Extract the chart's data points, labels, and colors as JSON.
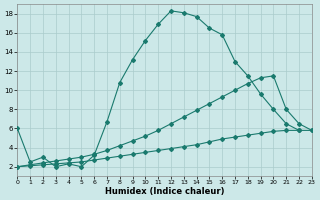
{
  "xlabel": "Humidex (Indice chaleur)",
  "background_color": "#cce8e8",
  "grid_color": "#aacccc",
  "line_color": "#1a7a6e",
  "xlim": [
    0,
    23
  ],
  "ylim": [
    1,
    19
  ],
  "xticks": [
    0,
    1,
    2,
    3,
    4,
    5,
    6,
    7,
    8,
    9,
    10,
    11,
    12,
    13,
    14,
    15,
    16,
    17,
    18,
    19,
    20,
    21,
    22,
    23
  ],
  "yticks": [
    2,
    4,
    6,
    8,
    10,
    12,
    14,
    16,
    18
  ],
  "curve1_x": [
    0,
    1,
    2,
    3,
    4,
    5,
    6,
    7,
    8,
    9,
    10,
    11,
    12,
    13,
    14,
    15,
    16,
    17,
    18,
    19,
    20,
    21,
    22
  ],
  "curve1_y": [
    6.0,
    2.5,
    3.0,
    2.0,
    2.3,
    2.0,
    3.2,
    6.7,
    10.8,
    13.2,
    15.2,
    16.9,
    18.3,
    18.1,
    17.7,
    16.5,
    15.8,
    13.0,
    11.5,
    9.6,
    8.0,
    6.5,
    5.8
  ],
  "curve2_x": [
    0,
    1,
    2,
    3,
    4,
    5,
    6,
    7,
    8,
    9,
    10,
    11,
    12,
    13,
    14,
    15,
    16,
    17,
    18,
    19,
    20,
    21,
    22,
    23
  ],
  "curve2_y": [
    2.0,
    2.1,
    2.2,
    2.3,
    2.4,
    2.5,
    2.7,
    2.9,
    3.1,
    3.3,
    3.5,
    3.7,
    3.9,
    4.1,
    4.3,
    4.6,
    4.9,
    5.1,
    5.3,
    5.5,
    5.7,
    5.8,
    5.8,
    5.8
  ],
  "curve3_x": [
    0,
    1,
    2,
    3,
    4,
    5,
    6,
    7,
    8,
    9,
    10,
    11,
    12,
    13,
    14,
    15,
    16,
    17,
    18,
    19,
    20,
    21,
    22,
    23
  ],
  "curve3_y": [
    2.0,
    2.2,
    2.4,
    2.6,
    2.8,
    3.0,
    3.3,
    3.7,
    4.2,
    4.7,
    5.2,
    5.8,
    6.5,
    7.2,
    7.9,
    8.6,
    9.3,
    10.0,
    10.7,
    11.3,
    11.5,
    8.0,
    6.5,
    5.8
  ]
}
